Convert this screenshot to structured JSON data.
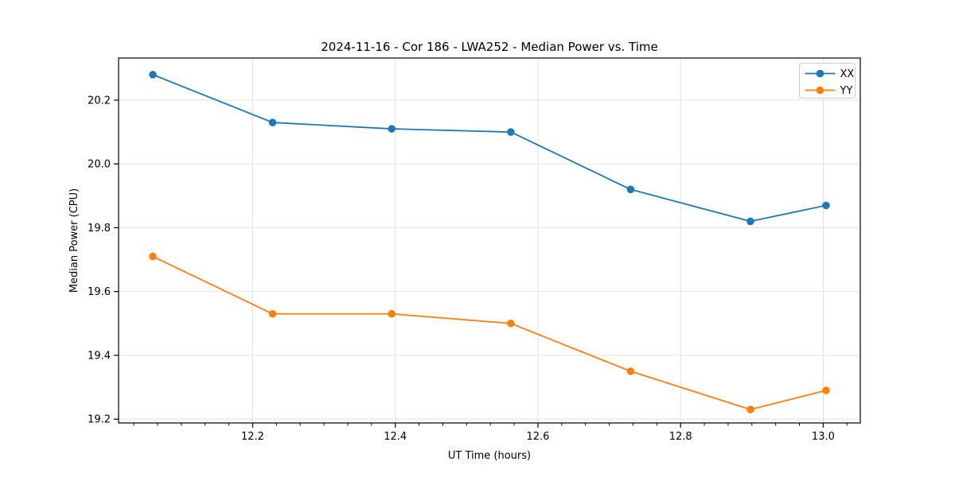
{
  "chart_data": {
    "type": "line",
    "title": "2024-11-16 - Cor 186 - LWA252 - Median Power vs. Time",
    "xlabel": "UT Time (hours)",
    "ylabel": "Median Power (CPU)",
    "x": [
      12.06,
      12.228,
      12.395,
      12.562,
      12.73,
      12.898,
      13.004
    ],
    "series": [
      {
        "name": "XX",
        "color": "#1f77b4",
        "values": [
          20.28,
          20.13,
          20.11,
          20.1,
          19.92,
          19.82,
          19.87
        ]
      },
      {
        "name": "YY",
        "color": "#ff7f0e",
        "values": [
          19.71,
          19.53,
          19.53,
          19.5,
          19.35,
          19.23,
          19.29
        ]
      }
    ],
    "xlim": [
      12.012,
      13.052
    ],
    "ylim": [
      19.188,
      20.332
    ],
    "xticks": [
      12.2,
      12.4,
      12.6,
      12.8,
      13.0
    ],
    "yticks": [
      19.2,
      19.4,
      19.6,
      19.8,
      20.0,
      20.2
    ],
    "x_minor_base": 12.0,
    "x_minor_step": 0.0333333,
    "grid": true,
    "grid_color": "#e3e3e3",
    "spine_color": "#000000",
    "legend_position": "top-right",
    "legend_border_color": "#cccccc",
    "marker": "circle"
  }
}
